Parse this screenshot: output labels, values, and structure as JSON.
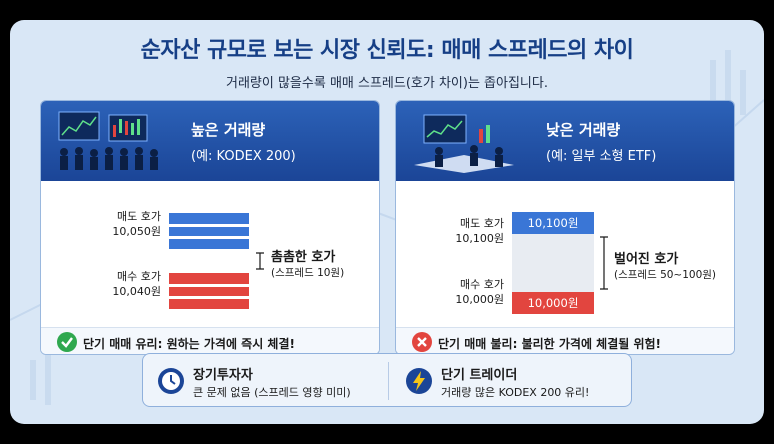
{
  "header": {
    "title": "순자산 규모로 보는 시장 신뢰도: 매매 스프레드의 차이",
    "subtitle": "거래량이 많을수록 매매 스프레드(호가 차이)는 좁아집니다."
  },
  "left_panel": {
    "title": "높은 거래량",
    "subtitle": "(예: KODEX 200)",
    "ask_label": "매도 호가",
    "ask_price": "10,050원",
    "bid_label": "매수 호가",
    "bid_price": "10,040원",
    "spread_title": "촘촘한 호가",
    "spread_note": "(스프레드 10원)",
    "verdict": "단기 매매 유리: 원하는 가격에 즉시 체결!"
  },
  "right_panel": {
    "title": "낮은 거래량",
    "subtitle": "(예: 일부 소형 ETF)",
    "ask_label": "매도 호가",
    "ask_price": "10,100원",
    "ask_bar": "10,100원",
    "bid_label": "매수 호가",
    "bid_price": "10,000원",
    "bid_bar": "10,000원",
    "spread_title": "벌어진 호가",
    "spread_note": "(스프레드 50~100원)",
    "verdict": "단기 매매 불리: 불리한 가격에 체결될 위험!"
  },
  "bottom": {
    "long_title": "장기투자자",
    "long_note": "큰 문제 없음 (스프레드 영향 미미)",
    "short_title": "단기 트레이더",
    "short_note": "거래량 많은 KODEX 200 유리!"
  },
  "colors": {
    "title": "#163f86",
    "ask": "#3a76d6",
    "bid": "#e2453f",
    "check": "#2fa84f",
    "cross": "#e2453f"
  },
  "icons": [
    "trading-crowd-illustration",
    "check-icon",
    "cross-icon",
    "clock-icon",
    "lightning-icon",
    "spread-bracket-icon"
  ]
}
